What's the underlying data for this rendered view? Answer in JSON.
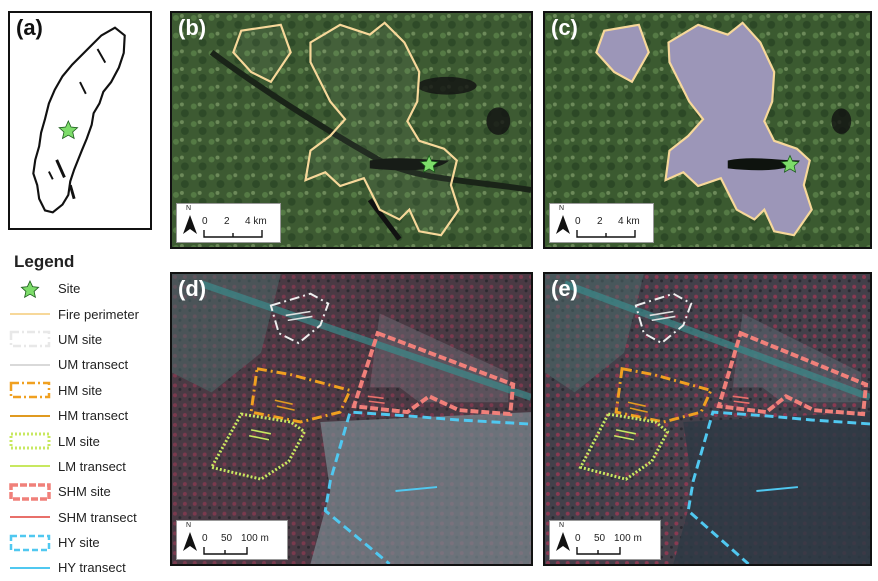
{
  "panels": {
    "a": {
      "label": "(a)"
    },
    "b": {
      "label": "(b)",
      "scale": {
        "north": "N",
        "ticks": [
          "0",
          "2",
          "4 km"
        ]
      }
    },
    "c": {
      "label": "(c)",
      "scale": {
        "north": "N",
        "ticks": [
          "0",
          "2",
          "4 km"
        ]
      }
    },
    "d": {
      "label": "(d)",
      "scale": {
        "north": "N",
        "ticks": [
          "0",
          "50",
          "100 m"
        ]
      }
    },
    "e": {
      "label": "(e)",
      "scale": {
        "north": "N",
        "ticks": [
          "0",
          "50",
          "100 m"
        ]
      }
    }
  },
  "legend": {
    "title": "Legend",
    "items": [
      {
        "label": "Site",
        "symbol": "star",
        "color": "#7ddc6a"
      },
      {
        "label": "Fire perimeter",
        "symbol": "line",
        "color": "#f7d89a"
      },
      {
        "label": "UM site",
        "symbol": "dashdot-box",
        "color": "#e8e8e8"
      },
      {
        "label": "UM transect",
        "symbol": "line",
        "color": "#d9d9d9"
      },
      {
        "label": "HM site",
        "symbol": "dashdot-box",
        "color": "#f0a020"
      },
      {
        "label": "HM transect",
        "symbol": "line",
        "color": "#e09a20"
      },
      {
        "label": "LM site",
        "symbol": "dotted-box",
        "color": "#c8e860"
      },
      {
        "label": "LM transect",
        "symbol": "line",
        "color": "#c8e860"
      },
      {
        "label": "SHM site",
        "symbol": "double-box",
        "color": "#f0807a"
      },
      {
        "label": "SHM transect",
        "symbol": "line",
        "color": "#e8706a"
      },
      {
        "label": "HY site",
        "symbol": "dashed-box",
        "color": "#50c8f0"
      },
      {
        "label": "HY transect",
        "symbol": "line",
        "color": "#50c8f0"
      }
    ]
  }
}
